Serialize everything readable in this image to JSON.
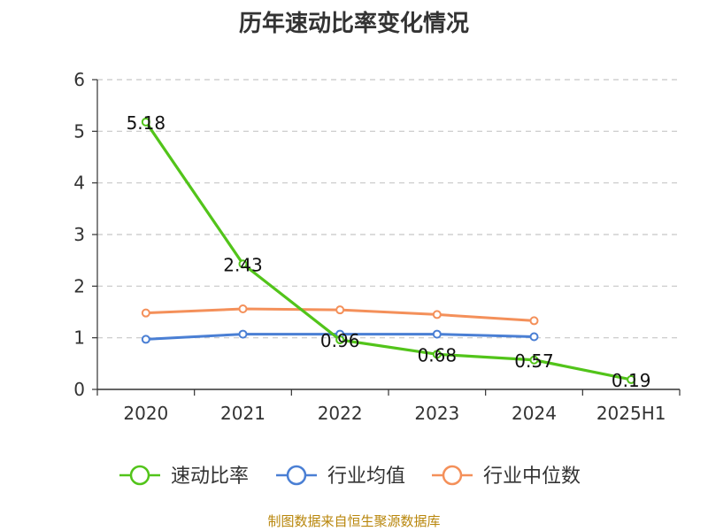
{
  "chart_data": {
    "type": "line",
    "title": "历年速动比率变化情况",
    "categories": [
      "2020",
      "2021",
      "2022",
      "2023",
      "2024",
      "2025H1"
    ],
    "ylim": [
      0,
      6
    ],
    "yticks": [
      "0",
      "1",
      "2",
      "3",
      "4",
      "5",
      "6"
    ],
    "grid": true,
    "legend_position": "bottom",
    "series": [
      {
        "name": "速动比率",
        "color": "#52c41a",
        "values": [
          5.18,
          2.43,
          0.96,
          0.68,
          0.57,
          0.19
        ],
        "labels": [
          "5.18",
          "2.43",
          "0.96",
          "0.68",
          "0.57",
          "0.19"
        ]
      },
      {
        "name": "行业均值",
        "color": "#4a7fd4",
        "values": [
          0.97,
          1.07,
          1.07,
          1.07,
          1.02,
          null
        ]
      },
      {
        "name": "行业中位数",
        "color": "#f4905a",
        "values": [
          1.48,
          1.56,
          1.54,
          1.45,
          1.33,
          null
        ]
      }
    ]
  },
  "footer": {
    "source": "制图数据来自恒生聚源数据库"
  }
}
